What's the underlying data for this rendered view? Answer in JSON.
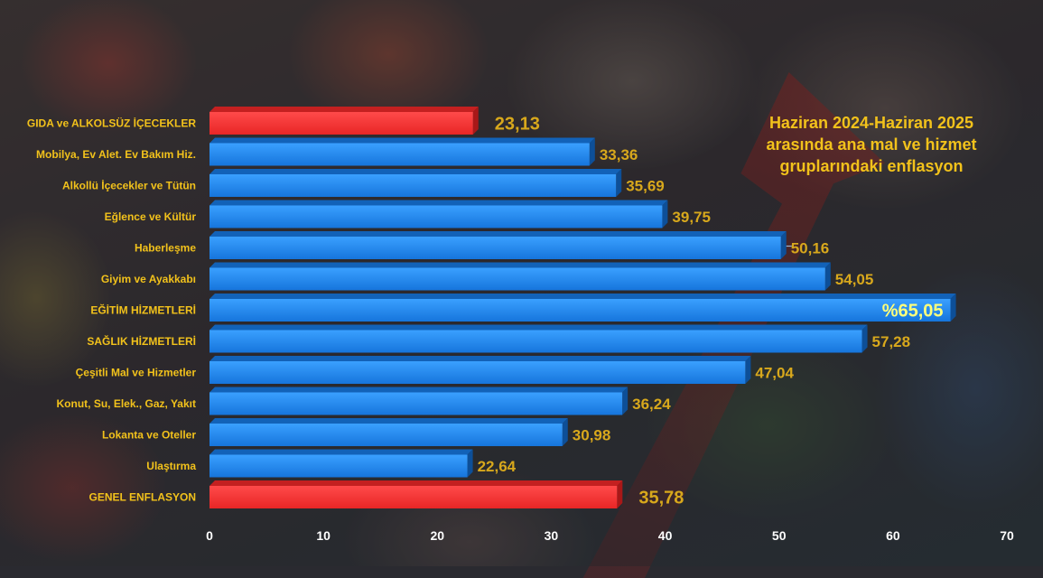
{
  "title": "Haziran 2024-Haziran 2025 arasında ana mal ve hizmet gruplarındaki enflasyon",
  "colors": {
    "label_text": "#f2c21b",
    "value_text": "#d8a81c",
    "highlight_text": "#ffff7a",
    "bar_blue": "#1e88ee",
    "bar_red": "#ff3434",
    "axis_text": "#ffffff"
  },
  "chart_data": {
    "type": "bar",
    "orientation": "horizontal",
    "title": "Haziran 2024-Haziran 2025 arasında ana mal ve hizmet gruplarındaki enflasyon",
    "xlabel": "",
    "ylabel": "",
    "xlim": [
      0,
      70
    ],
    "xticks": [
      0,
      10,
      20,
      30,
      40,
      50,
      60,
      70
    ],
    "grid": false,
    "categories": [
      "GIDA ve ALKOLSÜZ İÇECEKLER",
      "Mobilya, Ev Alet. Ev Bakım Hiz.",
      "Alkollü İçecekler ve Tütün",
      "Eğlence ve Kültür",
      "Haberleşme",
      "Giyim ve Ayakkabı",
      "EĞİTİM HİZMETLERİ",
      "SAĞLIK HİZMETLERİ",
      "Çeşitli Mal ve Hizmetler",
      "Konut, Su, Elek., Gaz, Yakıt",
      "Lokanta ve Oteller",
      "Ulaştırma",
      "GENEL ENFLASYON"
    ],
    "values": [
      23.13,
      33.36,
      35.69,
      39.75,
      50.16,
      54.05,
      65.05,
      57.28,
      47.04,
      36.24,
      30.98,
      22.64,
      35.78
    ],
    "value_labels": [
      "23,13",
      "33,36",
      "35,69",
      "39,75",
      "50,16",
      "54,05",
      "%65,05",
      "57,28",
      "47,04",
      "36,24",
      "30,98",
      "22,64",
      "35,78"
    ],
    "bar_colors": [
      "red",
      "blue",
      "blue",
      "blue",
      "blue",
      "blue",
      "blue",
      "blue",
      "blue",
      "blue",
      "blue",
      "blue",
      "red"
    ],
    "highlight_index": 6
  }
}
